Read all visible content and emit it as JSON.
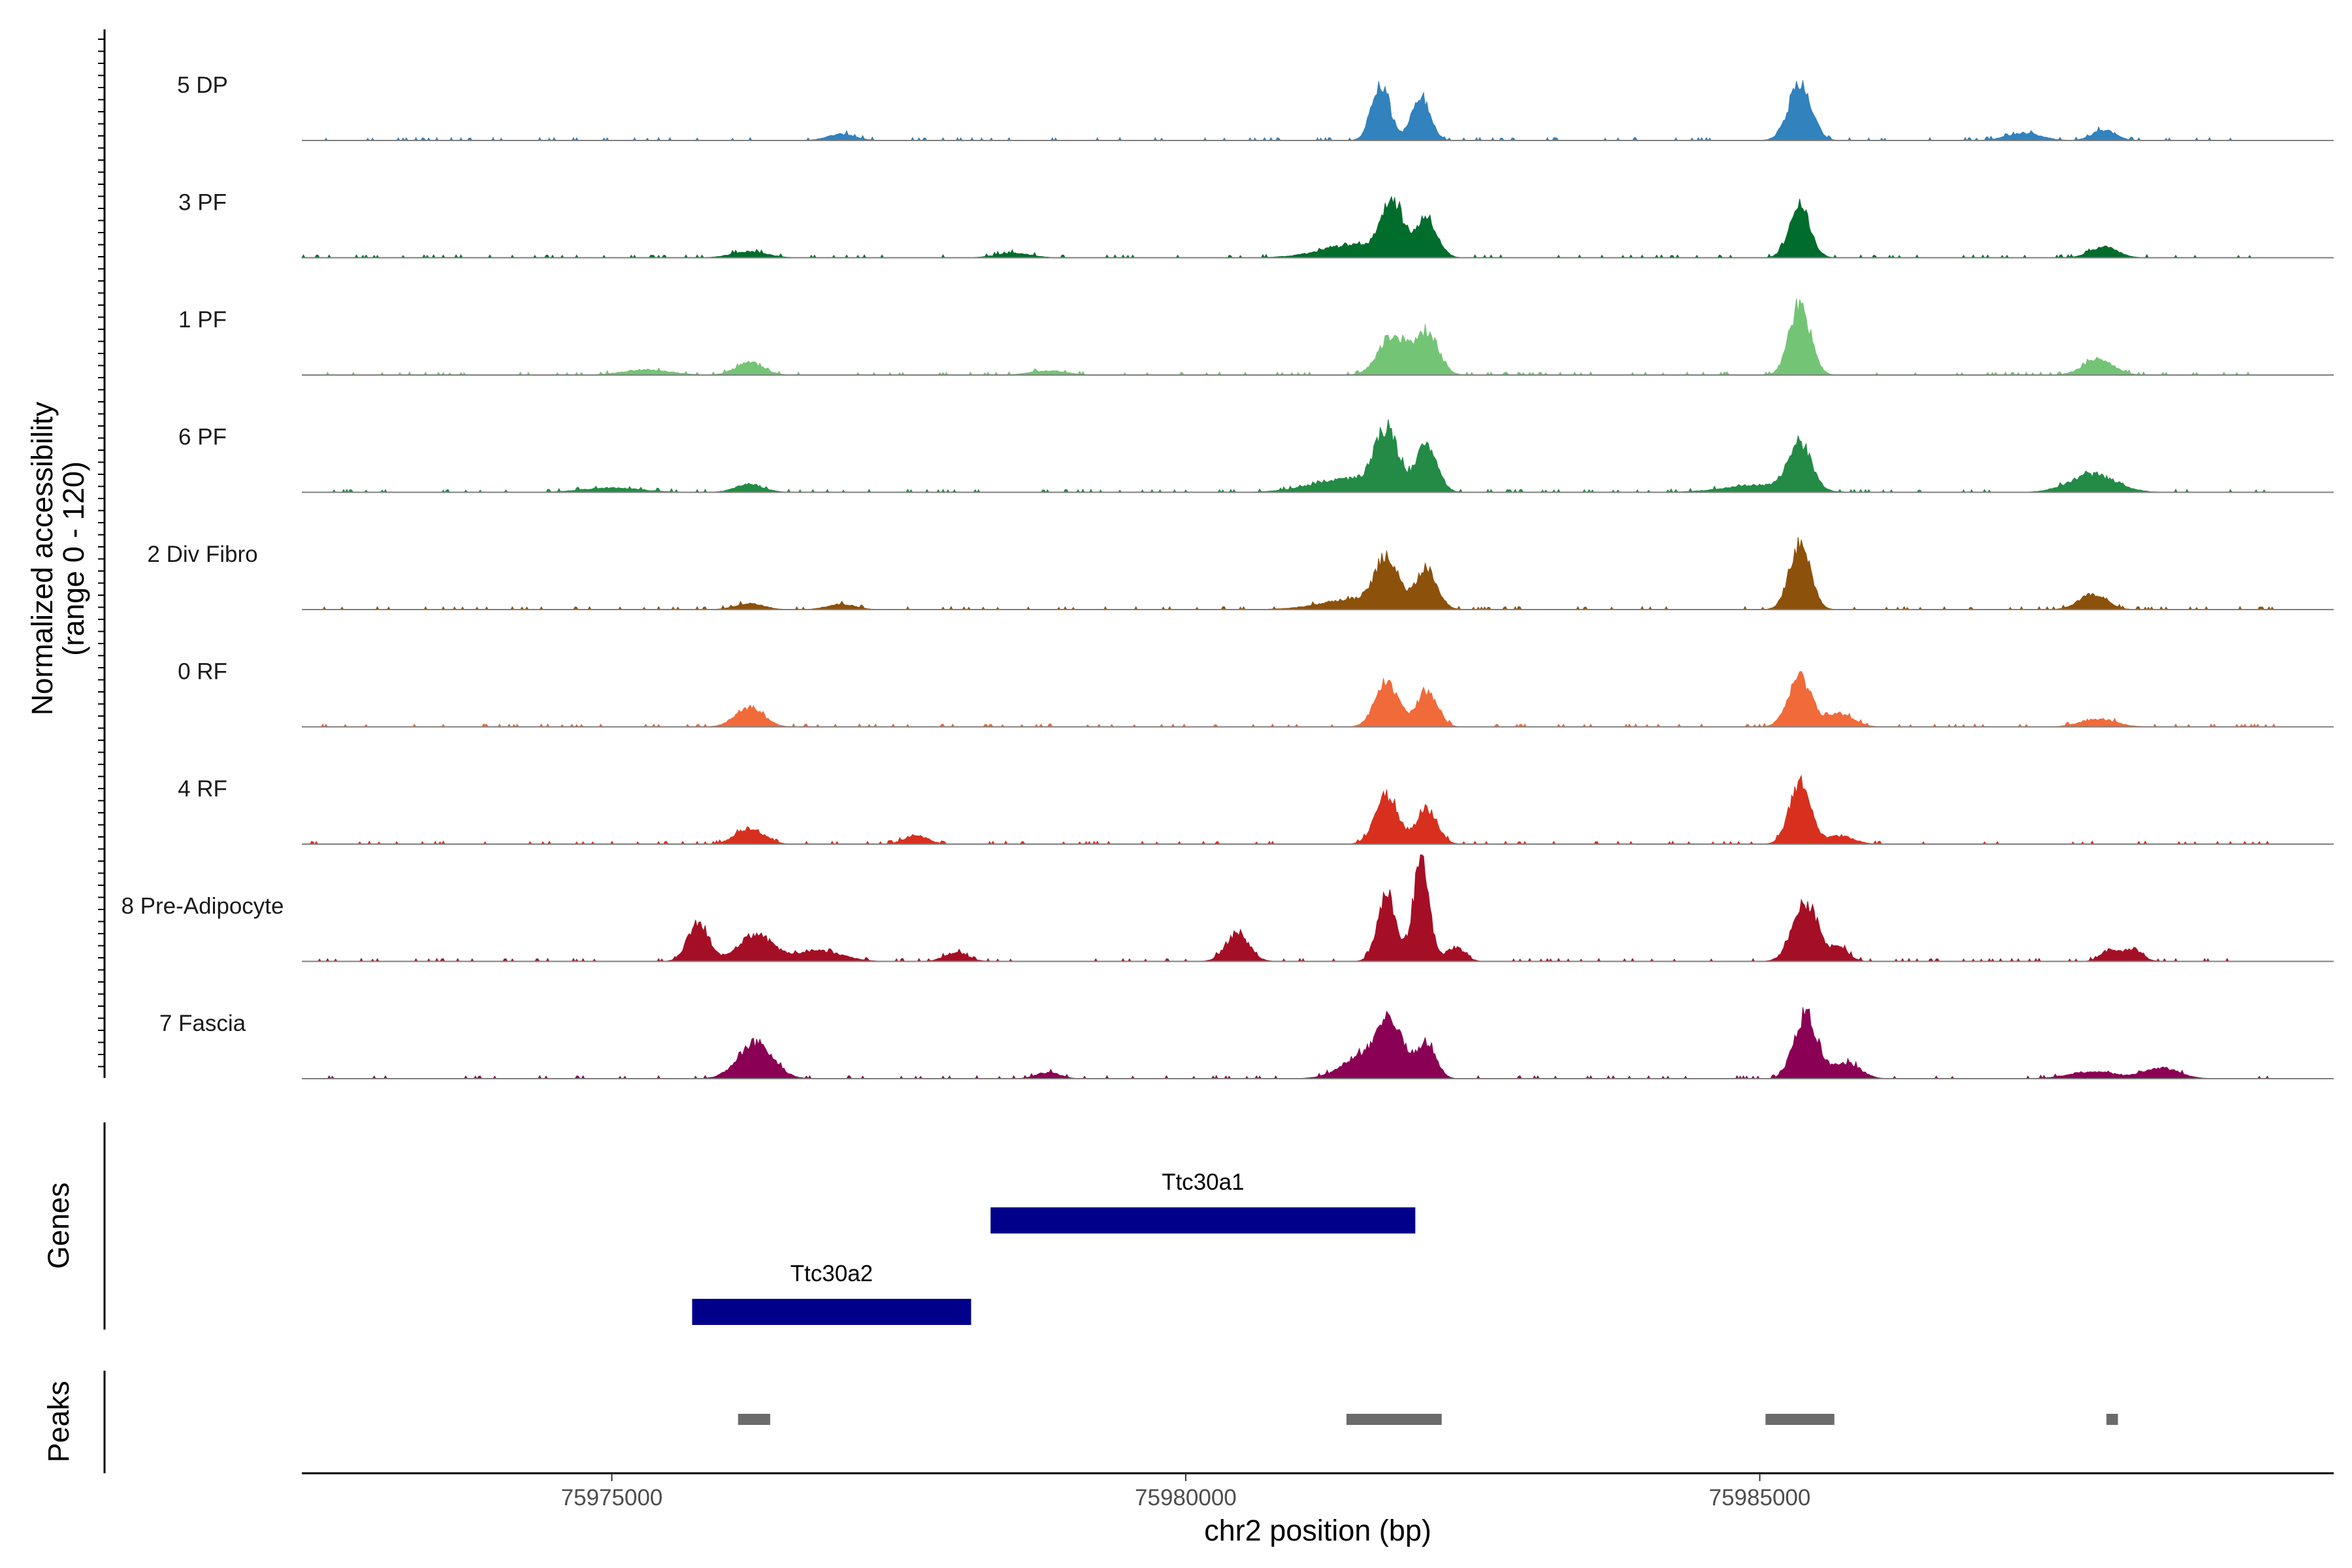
{
  "chart_data": {
    "type": "area",
    "title": "",
    "x_axis": {
      "label": "chr2 position (bp)",
      "range": [
        75972300,
        75990000
      ],
      "ticks": [
        75975000,
        75980000,
        75985000
      ],
      "tick_labels": [
        "75975000",
        "75980000",
        "75985000"
      ]
    },
    "coverage_panel": {
      "ylabel_line1": "Normalized accessibility",
      "ylabel_line2": "(range 0 - 120)",
      "ymax": 120,
      "profile_range": [
        75972300,
        75989500
      ],
      "tracks": [
        {
          "name": "5 DP",
          "color": "#3182bd",
          "peaks": [
            [
              75977000,
              7,
              120
            ],
            [
              75981700,
              60,
              80
            ],
            [
              75982050,
              50,
              80
            ],
            [
              75985350,
              62,
              100
            ],
            [
              75987300,
              8,
              150
            ],
            [
              75988000,
              12,
              100
            ]
          ]
        },
        {
          "name": "3 PF",
          "color": "#006d2c",
          "peaks": [
            [
              75976200,
              7,
              150
            ],
            [
              75978500,
              5,
              150
            ],
            [
              75981500,
              15,
              300
            ],
            [
              75981800,
              58,
              90
            ],
            [
              75982100,
              42,
              90
            ],
            [
              75985350,
              58,
              90
            ],
            [
              75988000,
              12,
              120
            ]
          ]
        },
        {
          "name": "1 PF",
          "color": "#74c476",
          "peaks": [
            [
              75975300,
              6,
              200
            ],
            [
              75976200,
              14,
              120
            ],
            [
              75978800,
              5,
              150
            ],
            [
              75981800,
              45,
              120
            ],
            [
              75982100,
              48,
              100
            ],
            [
              75985350,
              80,
              90
            ],
            [
              75987950,
              18,
              130
            ]
          ]
        },
        {
          "name": "6 PF",
          "color": "#238b45",
          "peaks": [
            [
              75976200,
              9,
              120
            ],
            [
              75975000,
              5,
              250
            ],
            [
              75981400,
              15,
              300
            ],
            [
              75981750,
              65,
              100
            ],
            [
              75982100,
              52,
              90
            ],
            [
              75985350,
              52,
              100
            ],
            [
              75985000,
              8,
              300
            ],
            [
              75987900,
              20,
              200
            ]
          ]
        },
        {
          "name": "2 Div Fibro",
          "color": "#8c510a",
          "peaks": [
            [
              75976200,
              7,
              120
            ],
            [
              75977000,
              6,
              120
            ],
            [
              75981500,
              12,
              300
            ],
            [
              75981750,
              52,
              100
            ],
            [
              75982100,
              45,
              90
            ],
            [
              75985350,
              75,
              90
            ],
            [
              75987900,
              17,
              120
            ]
          ]
        },
        {
          "name": "0 RF",
          "color": "#f16a3a",
          "peaks": [
            [
              75976200,
              22,
              120
            ],
            [
              75981750,
              50,
              100
            ],
            [
              75982100,
              40,
              90
            ],
            [
              75985350,
              55,
              100
            ],
            [
              75985700,
              14,
              120
            ],
            [
              75987950,
              9,
              150
            ]
          ]
        },
        {
          "name": "4 RF",
          "color": "#d7301f",
          "peaks": [
            [
              75976200,
              18,
              120
            ],
            [
              75977650,
              10,
              100
            ],
            [
              75981750,
              55,
              100
            ],
            [
              75982100,
              40,
              90
            ],
            [
              75985350,
              70,
              90
            ],
            [
              75985700,
              9,
              120
            ]
          ]
        },
        {
          "name": "8 Pre-Adipocyte",
          "color": "#a50f26",
          "peaks": [
            [
              75975750,
              42,
              90
            ],
            [
              75976250,
              30,
              150
            ],
            [
              75976800,
              12,
              200
            ],
            [
              75978000,
              10,
              100
            ],
            [
              75980450,
              32,
              100
            ],
            [
              75981750,
              75,
              80
            ],
            [
              75982050,
              110,
              70
            ],
            [
              75982350,
              16,
              80
            ],
            [
              75985400,
              65,
              110
            ],
            [
              75985700,
              14,
              80
            ],
            [
              75988050,
              12,
              80
            ],
            [
              75988250,
              14,
              80
            ]
          ]
        },
        {
          "name": "7 Fascia",
          "color": "#8a0055",
          "peaks": [
            [
              75976250,
              40,
              150
            ],
            [
              75978800,
              7,
              100
            ],
            [
              75981600,
              30,
              200
            ],
            [
              75981800,
              50,
              100
            ],
            [
              75982100,
              40,
              80
            ],
            [
              75985400,
              72,
              100
            ],
            [
              75985750,
              18,
              120
            ],
            [
              75987900,
              8,
              200
            ],
            [
              75988500,
              12,
              150
            ]
          ]
        }
      ]
    },
    "genes_panel": {
      "label": "Genes",
      "genes": [
        {
          "name": "Ttc30a1",
          "start": 75978300,
          "end": 75982000,
          "color": "#00008b"
        },
        {
          "name": "Ttc30a2",
          "start": 75975700,
          "end": 75978130,
          "color": "#00008b"
        }
      ]
    },
    "peaks_panel": {
      "label": "Peaks",
      "color": "#6b6b6b",
      "regions": [
        [
          75976100,
          75976380
        ],
        [
          75981400,
          75982230
        ],
        [
          75985050,
          75985650
        ],
        [
          75988020,
          75988120
        ]
      ]
    }
  }
}
